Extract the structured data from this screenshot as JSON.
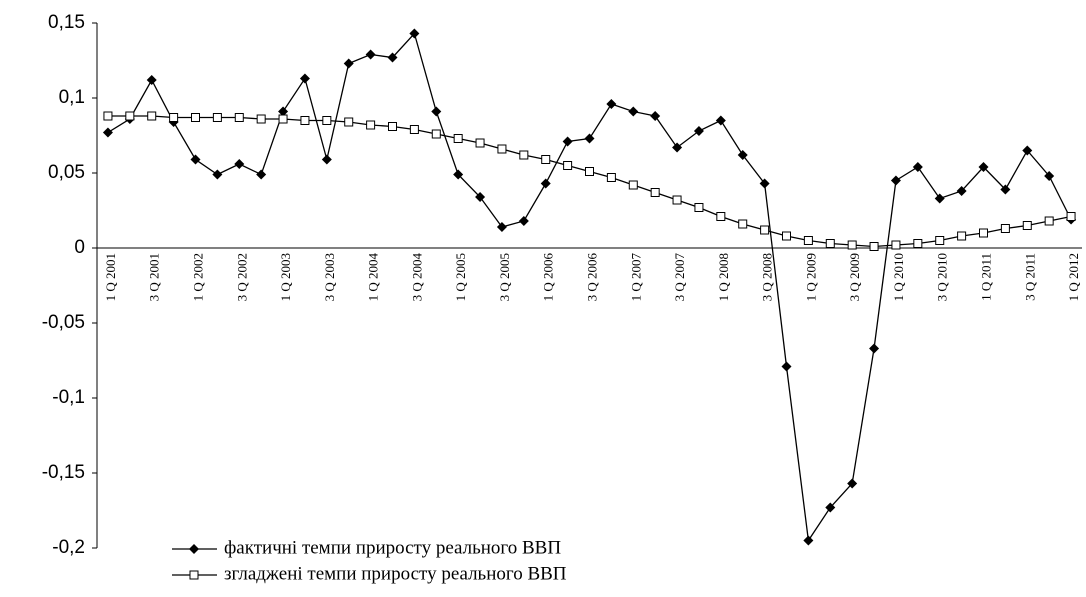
{
  "chart_data": {
    "type": "line",
    "categories": [
      "1 Q 2001",
      null,
      "3 Q 2001",
      null,
      "1 Q 2002",
      null,
      "3 Q 2002",
      null,
      "1 Q 2003",
      null,
      "3 Q 2003",
      null,
      "1 Q 2004",
      null,
      "3 Q 2004",
      null,
      "1 Q 2005",
      null,
      "3 Q 2005",
      null,
      "1 Q 2006",
      null,
      "3 Q 2006",
      null,
      "1 Q 2007",
      null,
      "3 Q 2007",
      null,
      "1 Q 2008",
      null,
      "3 Q 2008",
      null,
      "1 Q 2009",
      null,
      "3 Q 2009",
      null,
      "1 Q 2010",
      null,
      "3 Q 2010",
      null,
      "1 Q 2011",
      null,
      "3 Q 2011",
      null,
      "1 Q 2012"
    ],
    "series": [
      {
        "name": "фактичні темпи приросту реального ВВП",
        "color": "#000000",
        "marker": "diamond",
        "values": [
          0.077,
          0.086,
          0.112,
          0.084,
          0.059,
          0.049,
          0.056,
          0.049,
          0.091,
          0.113,
          0.059,
          0.123,
          0.129,
          0.127,
          0.143,
          0.091,
          0.049,
          0.034,
          0.014,
          0.018,
          0.043,
          0.071,
          0.073,
          0.096,
          0.091,
          0.088,
          0.067,
          0.078,
          0.085,
          0.062,
          0.043,
          -0.079,
          -0.195,
          -0.173,
          -0.157,
          -0.067,
          0.045,
          0.054,
          0.033,
          0.038,
          0.054,
          0.039,
          0.065,
          0.048,
          0.019
        ]
      },
      {
        "name": "згладжені темпи приросту реального ВВП",
        "color": "#000000",
        "marker": "square",
        "values": [
          0.088,
          0.088,
          0.088,
          0.087,
          0.087,
          0.087,
          0.087,
          0.086,
          0.086,
          0.085,
          0.085,
          0.084,
          0.082,
          0.081,
          0.079,
          0.076,
          0.073,
          0.07,
          0.066,
          0.062,
          0.059,
          0.055,
          0.051,
          0.047,
          0.042,
          0.037,
          0.032,
          0.027,
          0.021,
          0.016,
          0.012,
          0.008,
          0.005,
          0.003,
          0.002,
          0.001,
          0.002,
          0.003,
          0.005,
          0.008,
          0.01,
          0.013,
          0.015,
          0.018,
          0.021
        ]
      }
    ],
    "ylim": [
      -0.2,
      0.15
    ],
    "yticks": [
      {
        "value": -0.2,
        "label": "-0,2"
      },
      {
        "value": -0.15,
        "label": "-0,15"
      },
      {
        "value": -0.1,
        "label": "-0,1"
      },
      {
        "value": -0.05,
        "label": "-0,05"
      },
      0,
      {
        "value": 0.05,
        "label": "0,05"
      },
      {
        "value": 0.1,
        "label": "0,1"
      },
      {
        "value": 0.15,
        "label": "0,15"
      }
    ],
    "grid": false,
    "legend": "lower left"
  }
}
